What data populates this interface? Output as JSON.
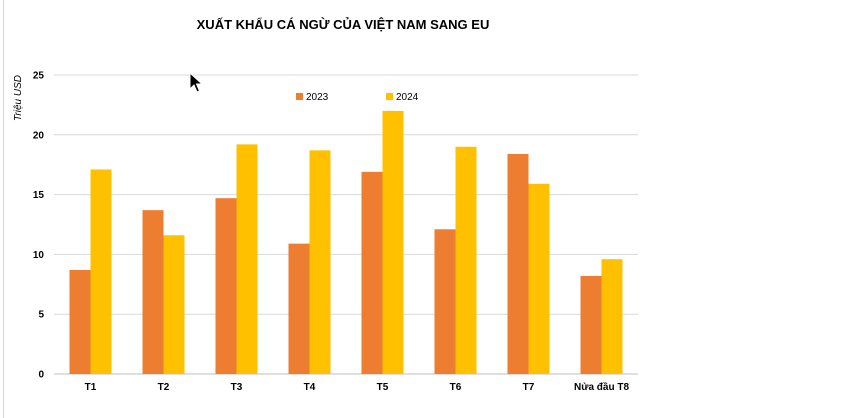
{
  "chart_data": {
    "type": "bar",
    "title": "XUẤT KHẨU CÁ NGỪ CỦA VIỆT NAM SANG EU",
    "xlabel": "",
    "ylabel": "Triệu USD",
    "ylim": [
      0,
      25
    ],
    "yticks": [
      0,
      5,
      10,
      15,
      20,
      25
    ],
    "grid": true,
    "legend_position": "top-center",
    "categories": [
      "T1",
      "T2",
      "T3",
      "T4",
      "T5",
      "T6",
      "T7",
      "Nửa đầu T8"
    ],
    "series": [
      {
        "name": "2023",
        "color": "#ED7D31",
        "values": [
          8.7,
          13.7,
          14.7,
          10.9,
          16.9,
          12.1,
          18.4,
          8.2
        ]
      },
      {
        "name": "2024",
        "color": "#FFC000",
        "values": [
          17.1,
          11.6,
          19.2,
          18.7,
          22.0,
          19.0,
          15.9,
          9.6
        ]
      }
    ]
  },
  "cursor_icon": "mouse-pointer-icon"
}
